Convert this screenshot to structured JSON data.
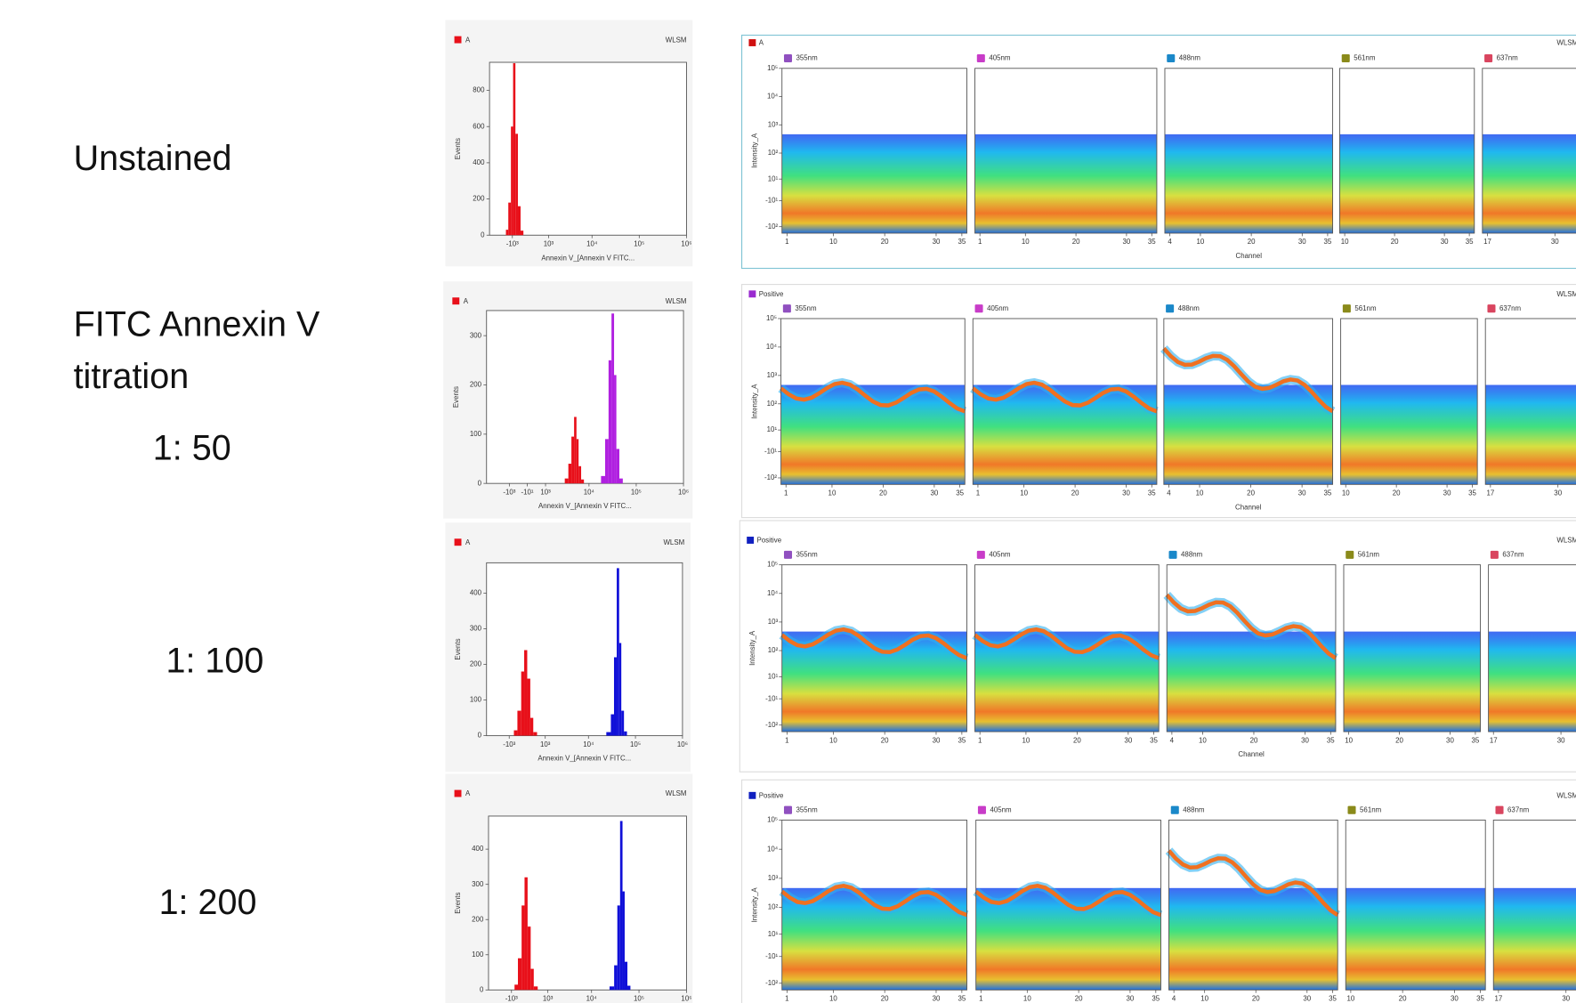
{
  "row_labels": [
    "Unstained",
    "FITC Annexin V",
    "titration",
    "1: 50",
    "1: 100",
    "1: 200"
  ],
  "chart_data": [
    {
      "type": "histogram",
      "legend": "A",
      "legend_color": "#e8101a",
      "instrument": "WLSM",
      "ylabel": "Events",
      "xlabel": "Annexin V_[Annexin V FITC...",
      "xscale": "biexponential",
      "xlim": [
        -3600,
        1000000
      ],
      "xticks": [
        {
          "value": -1000,
          "label": "-10³"
        },
        {
          "value": 1000,
          "label": "10³"
        },
        {
          "value": 10000,
          "label": "10⁴"
        },
        {
          "value": 100000,
          "label": "10⁵"
        },
        {
          "value": 1000000,
          "label": "10⁶"
        }
      ],
      "ylim": [
        0,
        955
      ],
      "yticks": [
        0,
        200,
        400,
        600,
        800
      ],
      "series": [
        {
          "color": "#e8101a",
          "bins": [
            -1500,
            -1300,
            -1100,
            -950,
            -800,
            -650,
            -500,
            -350
          ],
          "values": [
            30,
            180,
            600,
            950,
            560,
            160,
            25
          ]
        }
      ]
    },
    {
      "type": "spectral-heatmap",
      "legend": "A",
      "legend_color": "#d01010",
      "instrument": "WLSM",
      "ylabel": "Intensity_A",
      "xlabel": "Channel",
      "ylim": [
        -170,
        100000
      ],
      "yticks": [
        {
          "value": 100000,
          "label": "10⁵"
        },
        {
          "value": 10000,
          "label": "10⁴"
        },
        {
          "value": 1000,
          "label": "10³"
        },
        {
          "value": 100,
          "label": "10²"
        },
        {
          "value": 10,
          "label": "10¹"
        },
        {
          "value": -10,
          "label": "-10¹"
        },
        {
          "value": -100,
          "label": "-10²"
        }
      ],
      "panels": [
        {
          "laser": "355nm",
          "color": "#9050c0",
          "xlim": [
            1,
            35
          ],
          "xticks": [
            1,
            10,
            20,
            30,
            35
          ]
        },
        {
          "laser": "405nm",
          "color": "#c83cc8",
          "xlim": [
            1,
            35
          ],
          "xticks": [
            1,
            10,
            20,
            30,
            35
          ]
        },
        {
          "laser": "488nm",
          "color": "#1a88c9",
          "xlim": [
            4,
            35
          ],
          "xticks": [
            4,
            10,
            20,
            30,
            35
          ]
        },
        {
          "laser": "561nm",
          "color": "#8a8a1a",
          "xlim": [
            10,
            35
          ],
          "xticks": [
            10,
            20,
            30,
            35
          ]
        },
        {
          "laser": "637nm",
          "color": "#d9455f",
          "xlim": [
            17,
            35
          ],
          "xticks": [
            17,
            30
          ]
        }
      ]
    },
    {
      "type": "histogram",
      "legend": "A",
      "legend_color": "#e8101a",
      "instrument": "WLSM",
      "ylabel": "Events",
      "xlabel": "Annexin V_[Annexin V FITC...",
      "xscale": "biexponential",
      "xlim": [
        -3600,
        1000000
      ],
      "xticks": [
        {
          "value": -1000,
          "label": "-10³"
        },
        {
          "value": -10,
          "label": "-10¹"
        },
        {
          "value": 1000,
          "label": "10³"
        },
        {
          "value": 10000,
          "label": "10⁴"
        },
        {
          "value": 100000,
          "label": "10⁵"
        },
        {
          "value": 1000000,
          "label": "10⁶"
        }
      ],
      "ylim": [
        0,
        351
      ],
      "yticks": [
        0,
        100,
        200,
        300
      ],
      "series": [
        {
          "color": "#e8101a",
          "bins": [
            3000,
            3600,
            4200,
            4800,
            5400,
            6000,
            6800,
            7800
          ],
          "values": [
            10,
            40,
            95,
            135,
            90,
            35,
            8
          ]
        },
        {
          "color": "#b020e0",
          "bins": [
            18000,
            22000,
            26000,
            30000,
            34000,
            38000,
            44000,
            52000
          ],
          "values": [
            15,
            90,
            250,
            345,
            220,
            70,
            10
          ]
        }
      ]
    },
    {
      "type": "spectral-heatmap",
      "legend": "Positive",
      "legend_color": "#9a2ad0",
      "instrument": "WLSM",
      "ylabel": "Intensity_A",
      "xlabel": "Channel",
      "ylim": [
        -170,
        100000
      ],
      "yticks": [
        {
          "value": 100000,
          "label": "10⁵"
        },
        {
          "value": 10000,
          "label": "10⁴"
        },
        {
          "value": 1000,
          "label": "10³"
        },
        {
          "value": 100,
          "label": "10²"
        },
        {
          "value": 10,
          "label": "10¹"
        },
        {
          "value": -10,
          "label": "-10¹"
        },
        {
          "value": -100,
          "label": "-10²"
        }
      ],
      "panels": [
        {
          "laser": "355nm",
          "color": "#9050c0",
          "xlim": [
            1,
            35
          ],
          "xticks": [
            1,
            10,
            20,
            30,
            35
          ]
        },
        {
          "laser": "405nm",
          "color": "#c83cc8",
          "xlim": [
            1,
            35
          ],
          "xticks": [
            1,
            10,
            20,
            30,
            35
          ]
        },
        {
          "laser": "488nm",
          "color": "#1a88c9",
          "xlim": [
            4,
            35
          ],
          "xticks": [
            4,
            10,
            20,
            30,
            35
          ]
        },
        {
          "laser": "561nm",
          "color": "#8a8a1a",
          "xlim": [
            10,
            35
          ],
          "xticks": [
            10,
            20,
            30,
            35
          ]
        },
        {
          "laser": "637nm",
          "color": "#d9455f",
          "xlim": [
            17,
            35
          ],
          "xticks": [
            17,
            30
          ]
        }
      ]
    },
    {
      "type": "histogram",
      "legend": "A",
      "legend_color": "#e8101a",
      "instrument": "WLSM",
      "ylabel": "Events",
      "xlabel": "Annexin V_[Annexin V FITC...",
      "xscale": "biexponential",
      "xlim": [
        -3600,
        1000000
      ],
      "xticks": [
        {
          "value": -1000,
          "label": "-10³"
        },
        {
          "value": 1000,
          "label": "10³"
        },
        {
          "value": 10000,
          "label": "10⁴"
        },
        {
          "value": 100000,
          "label": "10⁵"
        },
        {
          "value": 1000000,
          "label": "10⁶"
        }
      ],
      "ylim": [
        0,
        485
      ],
      "yticks": [
        0,
        100,
        200,
        300,
        400
      ],
      "series": [
        {
          "color": "#e8101a",
          "bins": [
            -700,
            -500,
            -300,
            -150,
            0,
            150,
            300,
            500
          ],
          "values": [
            15,
            70,
            180,
            240,
            160,
            50,
            10
          ]
        },
        {
          "color": "#1010d8",
          "bins": [
            24000,
            30000,
            35000,
            40000,
            45000,
            50000,
            57000,
            66000
          ],
          "values": [
            10,
            60,
            220,
            470,
            260,
            70,
            12
          ]
        }
      ]
    },
    {
      "type": "spectral-heatmap",
      "legend": "Positive",
      "legend_color": "#1020c0",
      "instrument": "WLSM",
      "ylabel": "Intensity_A",
      "xlabel": "Channel",
      "ylim": [
        -170,
        100000
      ],
      "yticks": [
        {
          "value": 100000,
          "label": "10⁵"
        },
        {
          "value": 10000,
          "label": "10⁴"
        },
        {
          "value": 1000,
          "label": "10³"
        },
        {
          "value": 100,
          "label": "10²"
        },
        {
          "value": 10,
          "label": "10¹"
        },
        {
          "value": -10,
          "label": "-10¹"
        },
        {
          "value": -100,
          "label": "-10²"
        }
      ],
      "panels": [
        {
          "laser": "355nm",
          "color": "#9050c0",
          "xlim": [
            1,
            35
          ],
          "xticks": [
            1,
            10,
            20,
            30,
            35
          ]
        },
        {
          "laser": "405nm",
          "color": "#c83cc8",
          "xlim": [
            1,
            35
          ],
          "xticks": [
            1,
            10,
            20,
            30,
            35
          ]
        },
        {
          "laser": "488nm",
          "color": "#1a88c9",
          "xlim": [
            4,
            35
          ],
          "xticks": [
            4,
            10,
            20,
            30,
            35
          ]
        },
        {
          "laser": "561nm",
          "color": "#8a8a1a",
          "xlim": [
            10,
            35
          ],
          "xticks": [
            10,
            20,
            30,
            35
          ]
        },
        {
          "laser": "637nm",
          "color": "#d9455f",
          "xlim": [
            17,
            35
          ],
          "xticks": [
            17,
            30
          ]
        }
      ]
    },
    {
      "type": "histogram",
      "legend": "A",
      "legend_color": "#e8101a",
      "instrument": "WLSM",
      "ylabel": "Events",
      "xscale": "biexponential",
      "xlim": [
        -3600,
        1000000
      ],
      "xticks": [
        {
          "value": -1000,
          "label": "-10³"
        },
        {
          "value": 1000,
          "label": "10³"
        },
        {
          "value": 10000,
          "label": "10⁴"
        },
        {
          "value": 100000,
          "label": "10⁵"
        },
        {
          "value": 1000000,
          "label": "10⁶"
        }
      ],
      "ylim": [
        0,
        494
      ],
      "yticks": [
        0,
        100,
        200,
        300,
        400
      ],
      "series": [
        {
          "color": "#e8101a",
          "bins": [
            -800,
            -600,
            -400,
            -250,
            -100,
            50,
            200,
            400
          ],
          "values": [
            15,
            90,
            240,
            320,
            180,
            60,
            10
          ]
        },
        {
          "color": "#1010d8",
          "bins": [
            24000,
            30000,
            35000,
            40000,
            45000,
            50000,
            57000,
            66000
          ],
          "values": [
            10,
            70,
            240,
            480,
            280,
            80,
            12
          ]
        }
      ]
    },
    {
      "type": "spectral-heatmap",
      "legend": "Positive",
      "legend_color": "#1020c0",
      "instrument": "WLSM",
      "ylabel": "Intensity_A",
      "ylim": [
        -170,
        100000
      ],
      "yticks": [
        {
          "value": 100000,
          "label": "10⁵"
        },
        {
          "value": 10000,
          "label": "10⁴"
        },
        {
          "value": 1000,
          "label": "10³"
        },
        {
          "value": 100,
          "label": "10²"
        },
        {
          "value": 10,
          "label": "10¹"
        },
        {
          "value": -10,
          "label": "-10¹"
        },
        {
          "value": -100,
          "label": "-10²"
        }
      ],
      "panels": [
        {
          "laser": "355nm",
          "color": "#9050c0",
          "xlim": [
            1,
            35
          ],
          "xticks": [
            1,
            10,
            20,
            30,
            35
          ]
        },
        {
          "laser": "405nm",
          "color": "#c83cc8",
          "xlim": [
            1,
            35
          ],
          "xticks": [
            1,
            10,
            20,
            30,
            35
          ]
        },
        {
          "laser": "488nm",
          "color": "#1a88c9",
          "xlim": [
            4,
            35
          ],
          "xticks": [
            4,
            10,
            20,
            30,
            35
          ]
        },
        {
          "laser": "561nm",
          "color": "#8a8a1a",
          "xlim": [
            10,
            35
          ],
          "xticks": [
            10,
            20,
            30,
            35
          ]
        },
        {
          "laser": "637nm",
          "color": "#d9455f",
          "xlim": [
            17,
            35
          ],
          "xticks": [
            17,
            30
          ]
        }
      ]
    }
  ]
}
